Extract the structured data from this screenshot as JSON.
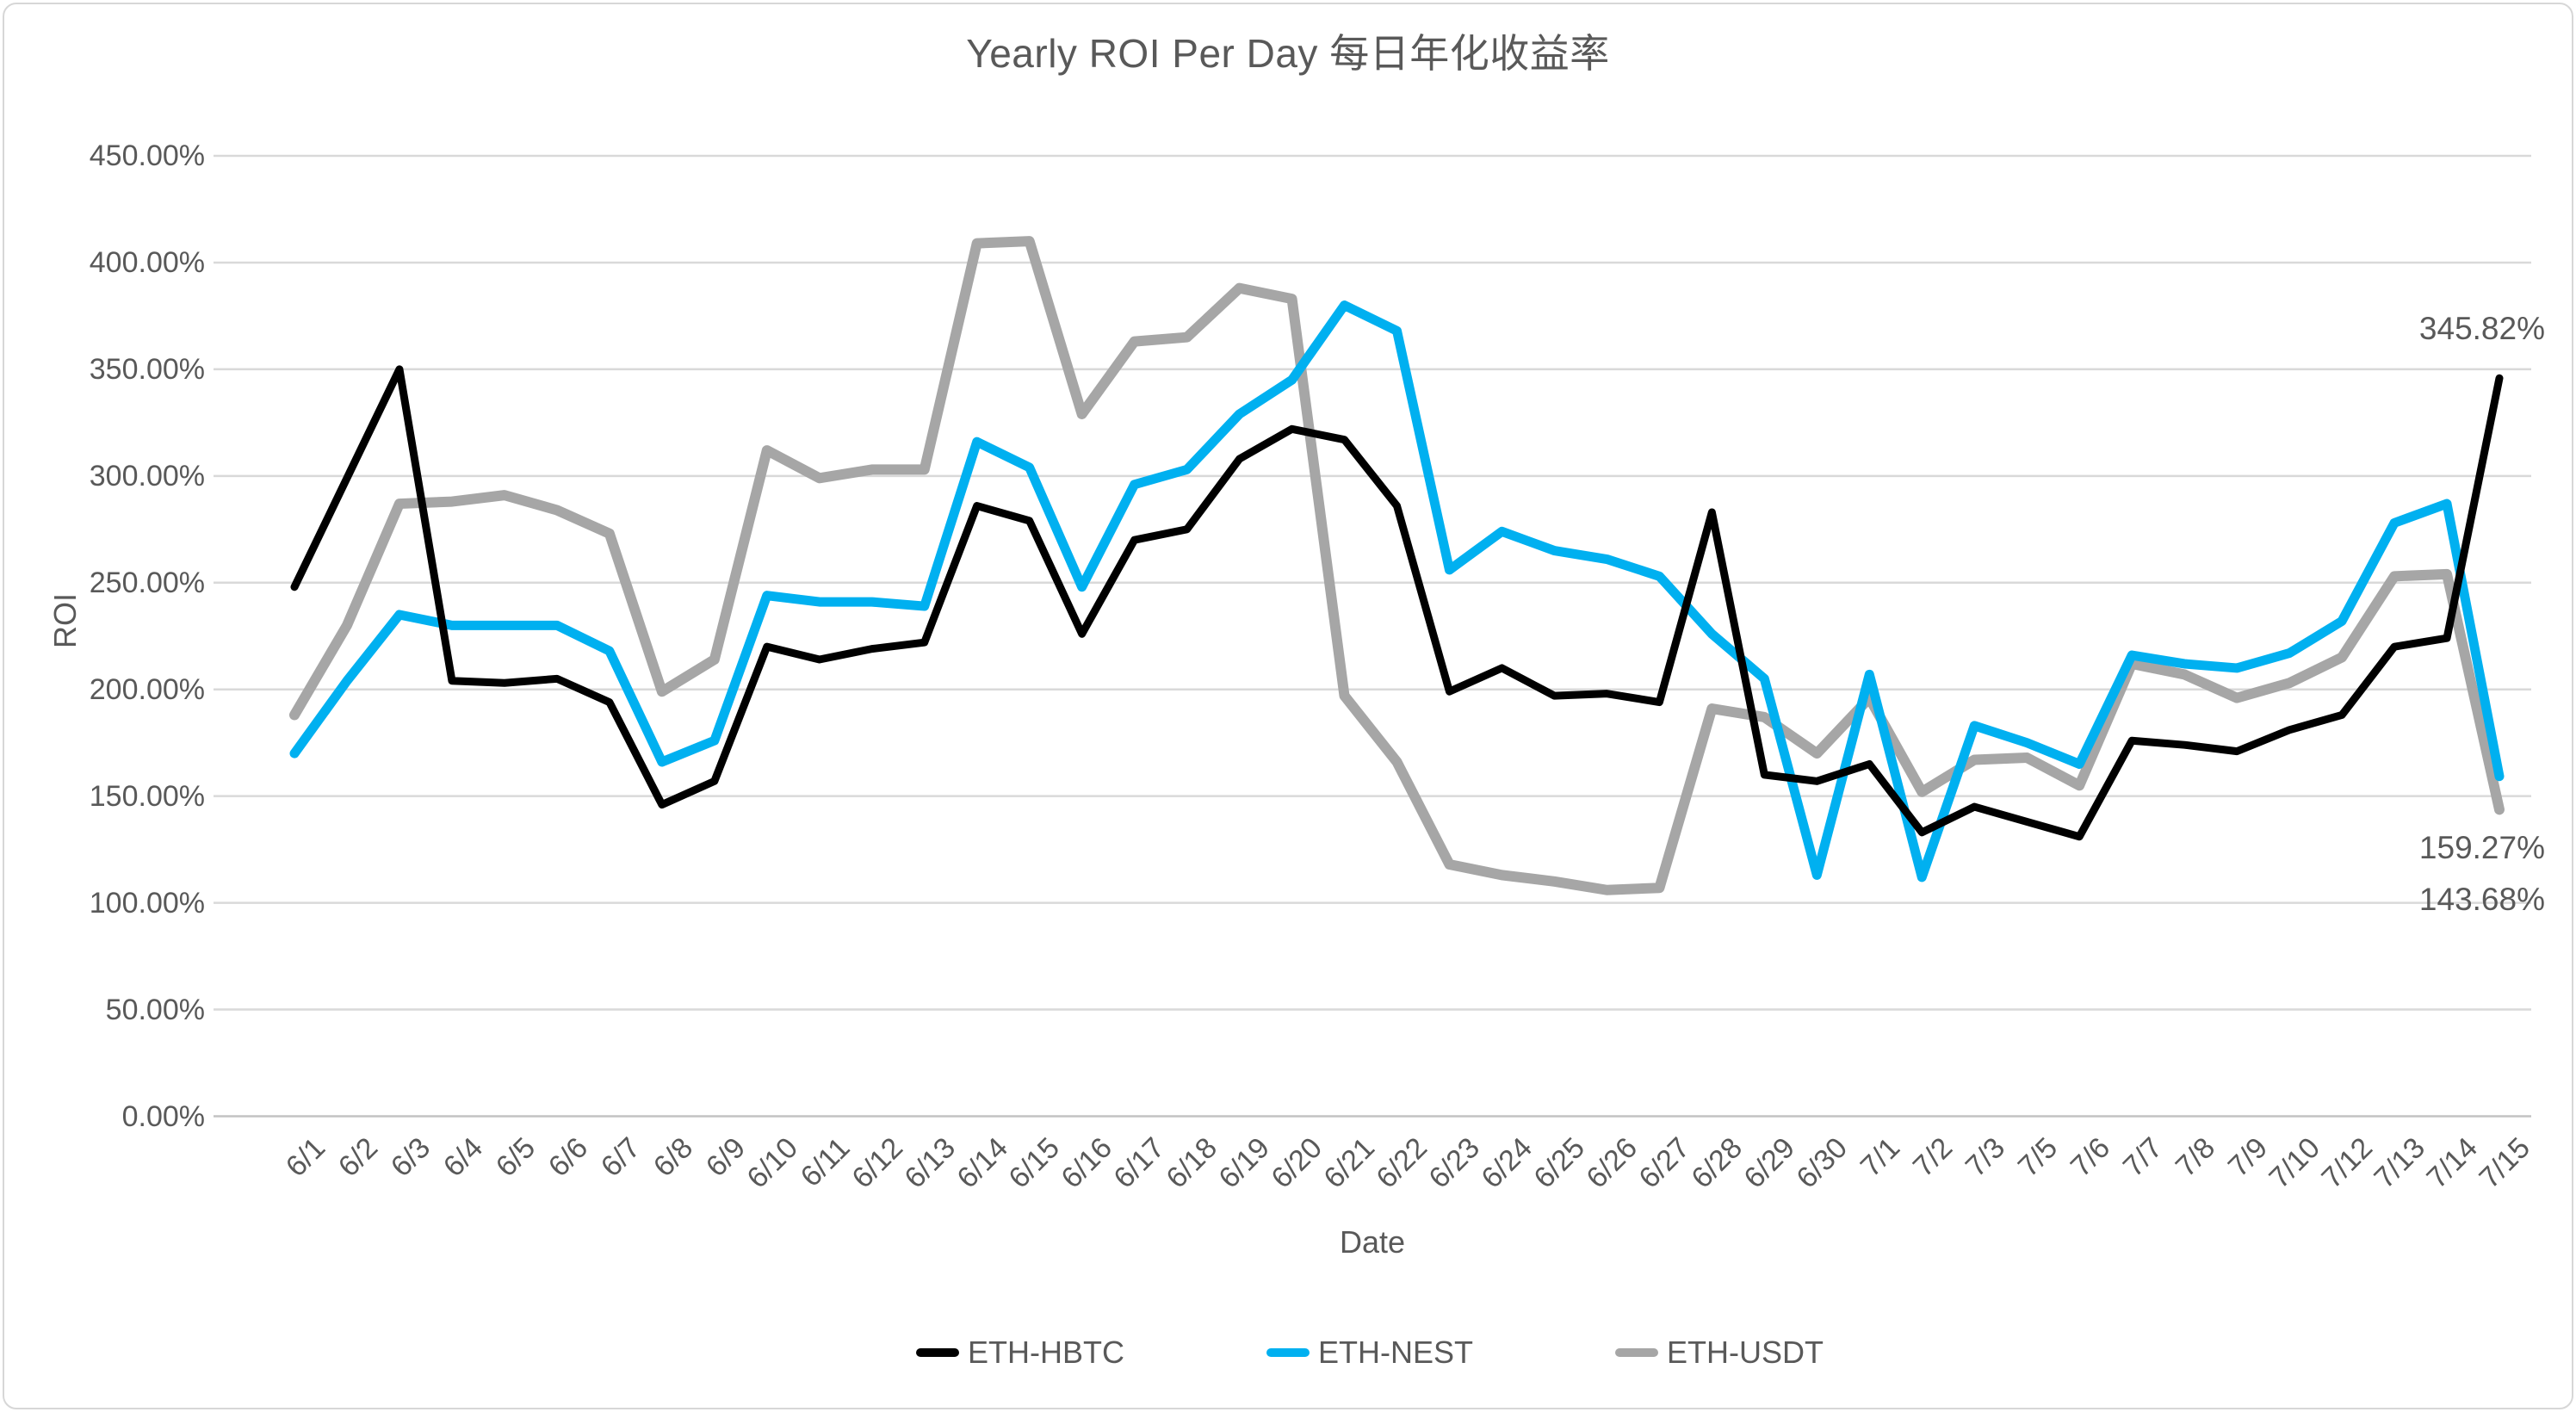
{
  "chart_data": {
    "type": "line",
    "title": "Yearly ROI Per Day 每日年化收益率",
    "xlabel": "Date",
    "ylabel": "ROI",
    "ylim": [
      0,
      450
    ],
    "grid": true,
    "legend_position": "bottom",
    "y_ticks": [
      "450.00%",
      "400.00%",
      "350.00%",
      "300.00%",
      "250.00%",
      "200.00%",
      "150.00%",
      "100.00%",
      "50.00%",
      "0.00%"
    ],
    "categories": [
      "6/1",
      "6/2",
      "6/3",
      "6/4",
      "6/5",
      "6/6",
      "6/7",
      "6/8",
      "6/9",
      "6/10",
      "6/11",
      "6/12",
      "6/13",
      "6/14",
      "6/15",
      "6/16",
      "6/17",
      "6/18",
      "6/19",
      "6/20",
      "6/21",
      "6/22",
      "6/23",
      "6/24",
      "6/25",
      "6/26",
      "6/27",
      "6/28",
      "6/29",
      "6/30",
      "7/1",
      "7/2",
      "7/3",
      "7/5",
      "7/6",
      "7/7",
      "7/8",
      "7/9",
      "7/10",
      "7/12",
      "7/13",
      "7/14",
      "7/15"
    ],
    "series": [
      {
        "name": "ETH-HBTC",
        "color": "#000000",
        "values": [
          248,
          299,
          350,
          204,
          203,
          205,
          194,
          146,
          157,
          220,
          214,
          219,
          222,
          286,
          279,
          226,
          270,
          275,
          308,
          322,
          317,
          286,
          199,
          210,
          197,
          198,
          194,
          283,
          160,
          157,
          165,
          133,
          145,
          138,
          131,
          176,
          174,
          171,
          181,
          188,
          220,
          224,
          345.82
        ]
      },
      {
        "name": "ETH-NEST",
        "color": "#00B0F0",
        "values": [
          170,
          204,
          235,
          230,
          230,
          230,
          218,
          166,
          176,
          244,
          241,
          241,
          239,
          316,
          304,
          248,
          296,
          303,
          329,
          345,
          380,
          368,
          256,
          274,
          265,
          261,
          253,
          226,
          205,
          113,
          207,
          112,
          183,
          175,
          165,
          216,
          212,
          210,
          217,
          232,
          278,
          287,
          159.27
        ]
      },
      {
        "name": "ETH-USDT",
        "color": "#A6A6A6",
        "values": [
          188,
          230,
          287,
          288,
          291,
          284,
          273,
          199,
          214,
          312,
          299,
          303,
          303,
          409,
          410,
          329,
          363,
          365,
          388,
          383,
          197,
          166,
          118,
          113,
          110,
          106,
          107,
          191,
          187,
          170,
          196,
          152,
          167,
          168,
          155,
          212,
          207,
          196,
          203,
          215,
          253,
          254,
          143.68
        ]
      }
    ],
    "annotations": [
      {
        "text": "345.82%",
        "series": "ETH-HBTC"
      },
      {
        "text": "159.27%",
        "series": "ETH-NEST"
      },
      {
        "text": "143.68%",
        "series": "ETH-USDT"
      }
    ]
  }
}
